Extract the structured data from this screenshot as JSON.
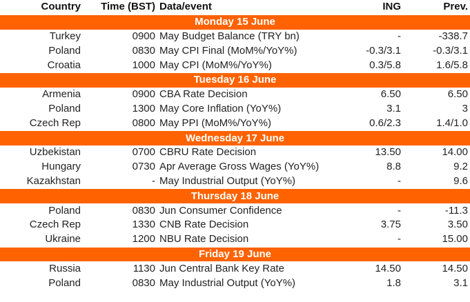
{
  "table": {
    "header": [
      "Country",
      "Time (BST)",
      "Data/event",
      "ING",
      "Prev."
    ],
    "days": [
      {
        "label": "Monday 15 June",
        "rows": [
          [
            "Turkey",
            "0900",
            "May Budget Balance (TRY bn)",
            "-",
            "-338.7"
          ],
          [
            "Poland",
            "0830",
            "May CPI Final (MoM%/YoY%)",
            "-0.3/3.1",
            "-0.3/3.1"
          ],
          [
            "Croatia",
            "1000",
            "May CPI (MoM%/YoY%)",
            "0.3/5.8",
            "1.6/5.8"
          ]
        ]
      },
      {
        "label": "Tuesday 16 June",
        "rows": [
          [
            "Armenia",
            "0900",
            "CBA Rate Decision",
            "6.50",
            "6.50"
          ],
          [
            "Poland",
            "1300",
            "May Core Inflation (YoY%)",
            "3.1",
            "3"
          ],
          [
            "Czech Rep",
            "0800",
            "May PPI (MoM%/YoY%)",
            "0.6/2.3",
            "1.4/1.0"
          ]
        ]
      },
      {
        "label": "Wednesday 17 June",
        "rows": [
          [
            "Uzbekistan",
            "0700",
            "CBRU Rate Decision",
            "13.50",
            "14.00"
          ],
          [
            "Hungary",
            "0730",
            "Apr Average Gross Wages (YoY%)",
            "8.8",
            "9.2"
          ],
          [
            "Kazakhstan",
            "-",
            "May Industrial Output (YoY%)",
            "-",
            "9.6"
          ]
        ]
      },
      {
        "label": "Thursday 18 June",
        "rows": [
          [
            "Poland",
            "0830",
            "Jun Consumer Confidence",
            "-",
            "-11.3"
          ],
          [
            "Czech Rep",
            "1330",
            "CNB Rate Decision",
            "3.75",
            "3.50"
          ],
          [
            "Ukraine",
            "1200",
            "NBU Rate Decision",
            "-",
            "15.00"
          ]
        ]
      },
      {
        "label": "Friday 19 June",
        "rows": [
          [
            "Russia",
            "1130",
            "Jun Central Bank Key Rate",
            "14.50",
            "14.50"
          ],
          [
            "Poland",
            "0830",
            "May Industrial Output (YoY%)",
            "1.8",
            "3.1"
          ]
        ]
      }
    ]
  }
}
